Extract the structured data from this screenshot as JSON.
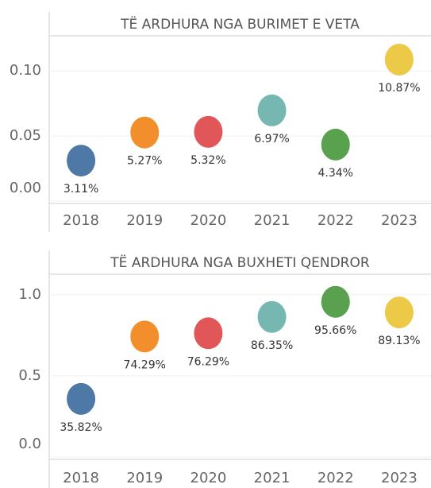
{
  "chart_data": [
    {
      "type": "dot",
      "title": "TË ARDHURA NGA BURIMET E VETA",
      "categories": [
        "2018",
        "2019",
        "2020",
        "2021",
        "2022",
        "2023"
      ],
      "values": [
        0.0311,
        0.0527,
        0.0532,
        0.0697,
        0.0434,
        0.1087
      ],
      "value_labels": [
        "3.11%",
        "5.27%",
        "5.32%",
        "6.97%",
        "4.34%",
        "10.87%"
      ],
      "colors": [
        "#4e79a7",
        "#f28e2b",
        "#e15759",
        "#76b7b2",
        "#59a14f",
        "#edc948"
      ],
      "ylim": [
        0,
        0.127
      ],
      "yticks": [
        {
          "value": 0,
          "label": "0.00"
        },
        0.05,
        {
          "value": 0.1,
          "label": "0.10"
        }
      ]
    },
    {
      "type": "dot",
      "title": "TË ARDHURA NGA BUXHETI QENDROR",
      "categories": [
        "2018",
        "2019",
        "2020",
        "2021",
        "2022",
        "2023"
      ],
      "values": [
        0.3582,
        0.7429,
        0.7629,
        0.8635,
        0.9566,
        0.8913
      ],
      "value_labels": [
        "35.82%",
        "74.29%",
        "76.29%",
        "86.35%",
        "95.66%",
        "89.13%"
      ],
      "colors": [
        "#4e79a7",
        "#f28e2b",
        "#e15759",
        "#76b7b2",
        "#59a14f",
        "#edc948"
      ],
      "ylim": [
        0,
        1.127
      ],
      "yticks": [
        {
          "value": 0,
          "label": "0.0"
        },
        0.5,
        {
          "value": 1,
          "label": "1.0"
        }
      ]
    }
  ]
}
